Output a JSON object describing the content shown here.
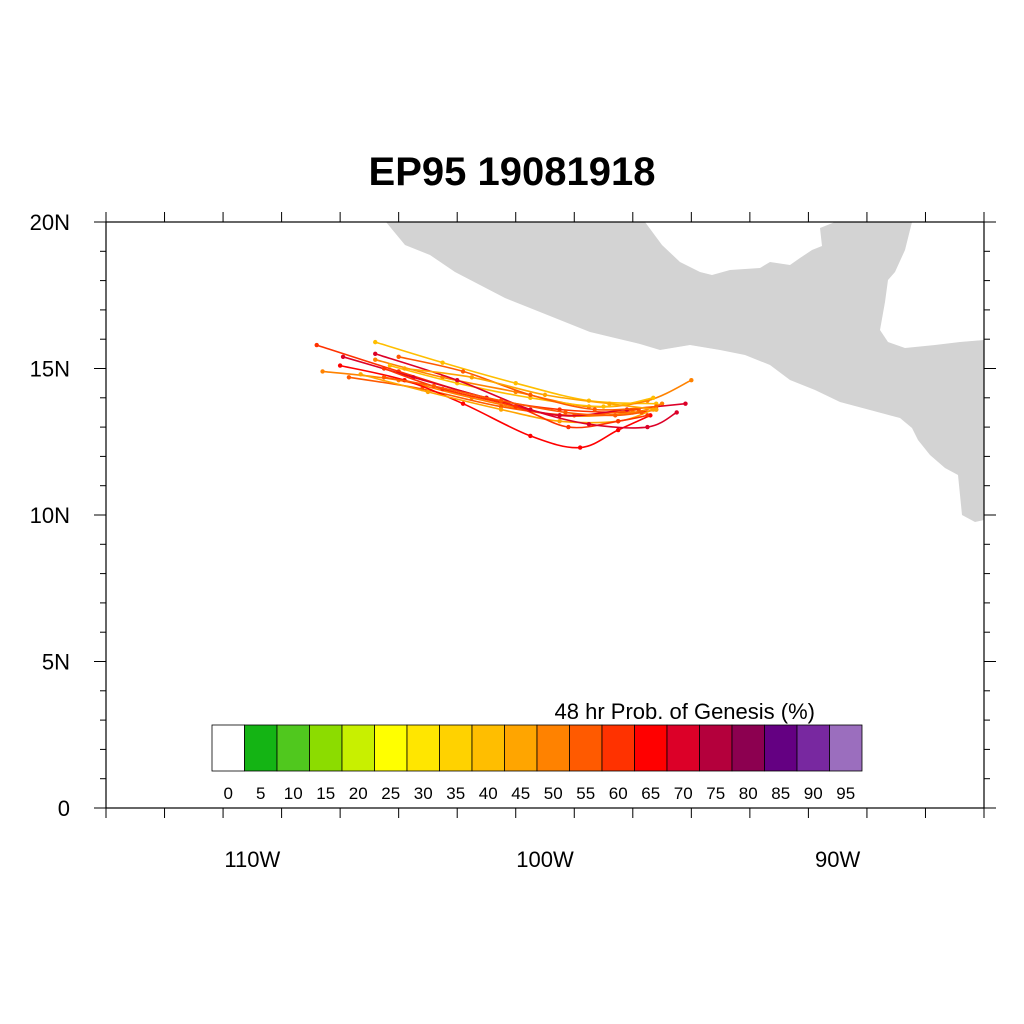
{
  "title": "EP95 19081918",
  "map": {
    "lon_range": [
      -115,
      -85
    ],
    "lat_range": [
      0,
      20
    ],
    "lat_ticks": [
      {
        "value": 20,
        "label": "20N"
      },
      {
        "value": 15,
        "label": "15N"
      },
      {
        "value": 10,
        "label": "10N"
      },
      {
        "value": 5,
        "label": "5N"
      },
      {
        "value": 0,
        "label": "0"
      }
    ],
    "lon_ticks": [
      {
        "value": -110,
        "label": "110W"
      },
      {
        "value": -100,
        "label": "100W"
      },
      {
        "value": -90,
        "label": "90W"
      }
    ],
    "land_color": "#d3d3d3"
  },
  "colorbar": {
    "title": "48 hr Prob. of Genesis (%)",
    "labels": [
      "0",
      "5",
      "10",
      "15",
      "20",
      "25",
      "30",
      "35",
      "40",
      "45",
      "50",
      "55",
      "60",
      "65",
      "70",
      "75",
      "80",
      "85",
      "90",
      "95"
    ],
    "colors": [
      "#ffffff",
      "#14b414",
      "#50c81e",
      "#8cdc00",
      "#c8f000",
      "#ffff00",
      "#ffe600",
      "#ffd200",
      "#ffbe00",
      "#ffa500",
      "#ff8200",
      "#ff5a00",
      "#ff3200",
      "#ff0000",
      "#dc0028",
      "#b4003c",
      "#8c0050",
      "#640082",
      "#7828a0",
      "#9b6ebe"
    ]
  },
  "chart_data": {
    "type": "track-map",
    "tracks": [
      {
        "color": "#ff3200",
        "points": [
          [
            -107.8,
            15.8
          ],
          [
            -105,
            14.9
          ],
          [
            -102,
            14.0
          ],
          [
            -99.5,
            13.6
          ],
          [
            -97,
            13.5
          ],
          [
            -96.2,
            13.6
          ]
        ]
      },
      {
        "color": "#ffbe00",
        "points": [
          [
            -105.8,
            15.9
          ],
          [
            -103.5,
            15.2
          ],
          [
            -101,
            14.5
          ],
          [
            -98.5,
            13.9
          ],
          [
            -96.2,
            13.8
          ]
        ]
      },
      {
        "color": "#ff8200",
        "points": [
          [
            -107.6,
            14.9
          ],
          [
            -105,
            14.6
          ],
          [
            -102.5,
            14.0
          ],
          [
            -99.5,
            13.4
          ],
          [
            -97,
            13.5
          ],
          [
            -96.0,
            13.8
          ]
        ]
      },
      {
        "color": "#ff5a00",
        "points": [
          [
            -106.7,
            14.7
          ],
          [
            -104.2,
            14.3
          ],
          [
            -101.5,
            13.7
          ],
          [
            -99,
            13.4
          ],
          [
            -96.8,
            13.6
          ]
        ]
      },
      {
        "color": "#dc0028",
        "points": [
          [
            -106.9,
            15.4
          ],
          [
            -104.5,
            14.7
          ],
          [
            -102,
            14.0
          ],
          [
            -99.5,
            13.4
          ],
          [
            -97.2,
            13.6
          ],
          [
            -95.2,
            13.8
          ]
        ]
      },
      {
        "color": "#ff0000",
        "points": [
          [
            -107.0,
            15.1
          ],
          [
            -104.8,
            14.6
          ],
          [
            -102.8,
            13.8
          ],
          [
            -100.5,
            12.7
          ],
          [
            -98.8,
            12.3
          ],
          [
            -97.5,
            12.9
          ],
          [
            -96.4,
            13.4
          ]
        ]
      },
      {
        "color": "#ffa500",
        "points": [
          [
            -106.3,
            14.8
          ],
          [
            -104,
            14.2
          ],
          [
            -101.5,
            13.6
          ],
          [
            -99.5,
            13.2
          ],
          [
            -97.5,
            13.2
          ],
          [
            -96.3,
            13.6
          ]
        ]
      },
      {
        "color": "#ff8200",
        "points": [
          [
            -105.8,
            15.3
          ],
          [
            -103.5,
            14.7
          ],
          [
            -101,
            14.2
          ],
          [
            -98.5,
            13.7
          ],
          [
            -96.5,
            13.9
          ],
          [
            -95.0,
            14.6
          ]
        ]
      },
      {
        "color": "#ffbe00",
        "points": [
          [
            -105.3,
            15.1
          ],
          [
            -103,
            14.5
          ],
          [
            -100.5,
            14.0
          ],
          [
            -98,
            13.7
          ],
          [
            -96.3,
            14.0
          ]
        ]
      },
      {
        "color": "#ff3200",
        "points": [
          [
            -105.5,
            15.0
          ],
          [
            -103.5,
            14.3
          ],
          [
            -101,
            13.7
          ],
          [
            -99.2,
            13.0
          ],
          [
            -97.5,
            13.2
          ],
          [
            -96.5,
            13.4
          ]
        ]
      },
      {
        "color": "#ff5a00",
        "points": [
          [
            -105.0,
            15.4
          ],
          [
            -102.8,
            14.9
          ],
          [
            -100.5,
            14.1
          ],
          [
            -98.3,
            13.6
          ],
          [
            -96.2,
            13.7
          ]
        ]
      },
      {
        "color": "#dc0028",
        "points": [
          [
            -105.8,
            15.5
          ],
          [
            -103,
            14.6
          ],
          [
            -100.5,
            13.6
          ],
          [
            -98.5,
            13.1
          ],
          [
            -96.5,
            13.0
          ],
          [
            -95.5,
            13.5
          ]
        ]
      },
      {
        "color": "#ff5a00",
        "points": [
          [
            -105.5,
            14.7
          ],
          [
            -103.8,
            14.4
          ],
          [
            -101.5,
            13.9
          ],
          [
            -99.3,
            13.5
          ],
          [
            -97.6,
            13.4
          ],
          [
            -96.7,
            13.5
          ]
        ]
      },
      {
        "color": "#ffa500",
        "points": [
          [
            -104.8,
            15.0
          ],
          [
            -102.5,
            14.7
          ],
          [
            -100,
            14.1
          ],
          [
            -97.8,
            13.8
          ],
          [
            -96.2,
            13.6
          ]
        ]
      }
    ]
  }
}
